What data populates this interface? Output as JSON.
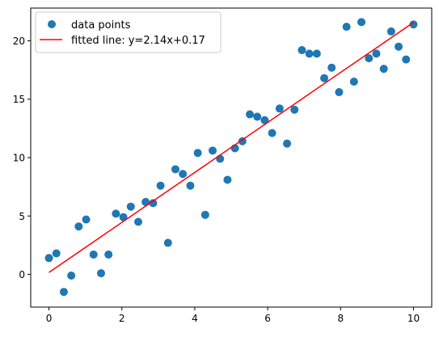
{
  "chart_data": {
    "type": "scatter",
    "title": "",
    "xlabel": "",
    "ylabel": "",
    "xlim": [
      -0.5,
      10.5
    ],
    "ylim": [
      -2.8,
      22.8
    ],
    "xticks": [
      0,
      2,
      4,
      6,
      8,
      10
    ],
    "yticks": [
      0,
      5,
      10,
      15,
      20
    ],
    "xtick_labels": [
      "0",
      "2",
      "4",
      "6",
      "8",
      "10"
    ],
    "ytick_labels": [
      "0",
      "5",
      "10",
      "15",
      "20"
    ],
    "grid": false,
    "legend_position": "top-left",
    "series": [
      {
        "name": "data points",
        "kind": "scatter",
        "color": "#1f77b4",
        "x": [
          0.0,
          0.204,
          0.408,
          0.612,
          0.816,
          1.02,
          1.224,
          1.429,
          1.633,
          1.837,
          2.041,
          2.245,
          2.449,
          2.653,
          2.857,
          3.061,
          3.265,
          3.469,
          3.673,
          3.878,
          4.082,
          4.286,
          4.49,
          4.694,
          4.898,
          5.102,
          5.306,
          5.51,
          5.714,
          5.918,
          6.122,
          6.327,
          6.531,
          6.735,
          6.939,
          7.143,
          7.347,
          7.551,
          7.755,
          7.959,
          8.163,
          8.367,
          8.571,
          8.776,
          8.98,
          9.184,
          9.388,
          9.592,
          9.796,
          10.0
        ],
        "y": [
          1.4,
          1.8,
          -1.5,
          -0.1,
          4.1,
          4.7,
          1.7,
          0.1,
          1.7,
          5.2,
          4.9,
          5.8,
          4.5,
          6.2,
          6.1,
          7.6,
          2.7,
          9.0,
          8.6,
          7.6,
          10.4,
          5.1,
          10.6,
          9.9,
          8.1,
          10.8,
          11.4,
          13.7,
          13.5,
          13.2,
          12.1,
          14.2,
          11.2,
          14.1,
          19.2,
          18.9,
          18.9,
          16.8,
          17.7,
          15.6,
          21.2,
          16.5,
          21.6,
          18.5,
          18.9,
          17.6,
          20.8,
          19.5,
          18.4,
          21.4
        ]
      },
      {
        "name": "fitted line: y=2.14x+0.17",
        "kind": "line",
        "color": "#ff0000",
        "x": [
          0,
          10
        ],
        "y": [
          0.17,
          21.57
        ]
      }
    ]
  }
}
